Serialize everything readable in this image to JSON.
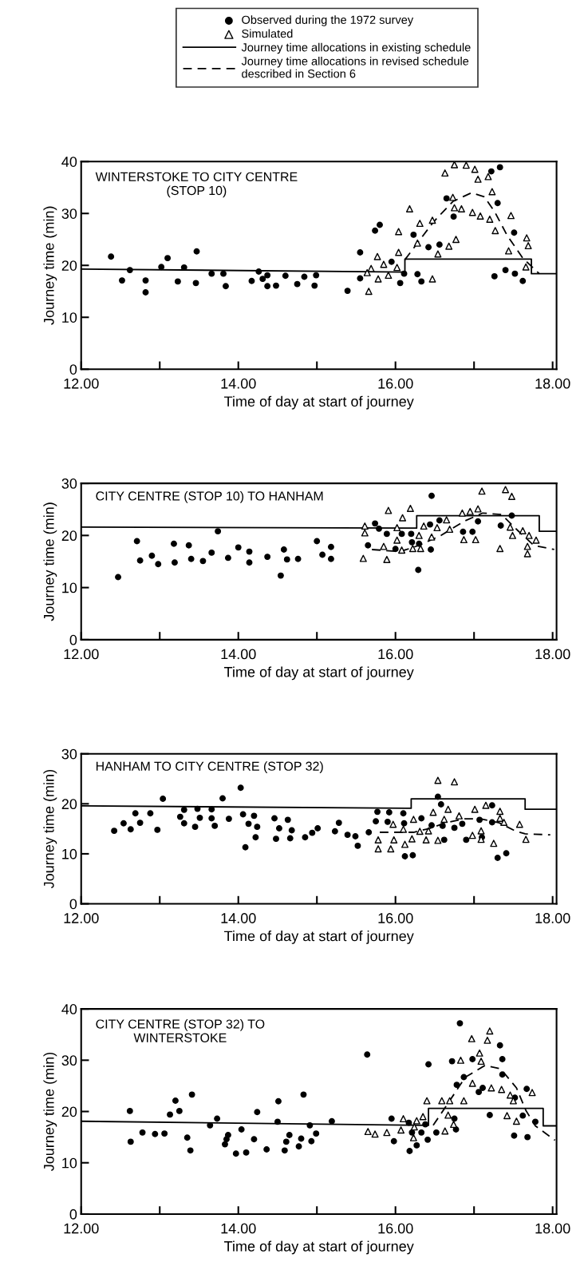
{
  "chart_data": [
    {
      "type": "scatter",
      "title": "WINTERSTOKE TO CITY CENTRE\n(STOP 10)",
      "xlabel": "Time of day at start of journey",
      "ylabel": "Journey time (min)",
      "legend": "top",
      "grid": false,
      "xlim": [
        12,
        18.05
      ],
      "xticks": [
        {
          "value": 12,
          "label": "12.00"
        },
        {
          "value": 13,
          "label": null
        },
        {
          "value": 14,
          "label": "14.00"
        },
        {
          "value": 15,
          "label": null
        },
        {
          "value": 16,
          "label": "16.00"
        },
        {
          "value": 17,
          "label": null
        },
        {
          "value": 18,
          "label": "18.00"
        }
      ],
      "ylim": [
        0,
        40
      ],
      "yticks": [
        0,
        10,
        20,
        30,
        40
      ],
      "series": [
        {
          "name": "Observed during the 1972 survey",
          "type": "scatter",
          "marker": "circle",
          "color": "#000000",
          "x": [
            12.38,
            12.52,
            12.62,
            12.82,
            12.82,
            13.02,
            13.1,
            13.23,
            13.31,
            13.46,
            13.47,
            13.66,
            13.81,
            13.84,
            14.17,
            14.26,
            14.31,
            14.37,
            14.37,
            14.48,
            14.6,
            14.75,
            14.84,
            14.97,
            14.99,
            15.39,
            15.55,
            15.55,
            15.74,
            15.8,
            15.95,
            16.06,
            16.11,
            16.23,
            16.28,
            16.33,
            16.42,
            16.56,
            16.65,
            16.74,
            17.22,
            17.33,
            17.3,
            17.26,
            17.4,
            17.51,
            17.52,
            17.62
          ],
          "values": [
            21.7,
            17.1,
            19.1,
            14.8,
            17.1,
            19.7,
            21.4,
            16.9,
            19.6,
            16.6,
            22.7,
            18.4,
            18.4,
            16.0,
            17.0,
            18.8,
            17.4,
            18.1,
            16.0,
            16.1,
            18.0,
            16.4,
            17.8,
            16.1,
            18.1,
            15.1,
            22.5,
            17.5,
            26.7,
            27.8,
            20.7,
            16.6,
            18.4,
            25.9,
            18.3,
            16.9,
            23.5,
            24.0,
            32.9,
            29.4,
            38.1,
            38.9,
            32.0,
            17.9,
            19.1,
            26.3,
            18.4,
            17.0
          ]
        },
        {
          "name": "Simulated",
          "type": "scatter",
          "marker": "triangle",
          "color": "#000000",
          "x": [
            15.66,
            15.64,
            15.69,
            15.77,
            15.78,
            15.85,
            15.91,
            16.02,
            16.04,
            16.04,
            16.18,
            16.28,
            16.31,
            16.47,
            16.47,
            16.54,
            16.63,
            16.68,
            16.75,
            16.77,
            16.73,
            16.75,
            16.84,
            16.9,
            16.98,
            17.01,
            17.05,
            17.08,
            17.18,
            17.2,
            17.23,
            17.27,
            17.44,
            17.47,
            17.66,
            17.67,
            17.69
          ],
          "values": [
            15.0,
            18.6,
            19.4,
            21.7,
            17.4,
            20.2,
            18.1,
            19.6,
            22.5,
            26.5,
            30.9,
            24.3,
            28.1,
            28.7,
            17.4,
            22.2,
            37.8,
            23.7,
            39.4,
            25.0,
            33.1,
            31.1,
            30.9,
            39.3,
            30.2,
            38.5,
            36.6,
            29.5,
            37.1,
            28.9,
            34.2,
            26.7,
            22.8,
            29.6,
            19.7,
            25.3,
            23.8
          ]
        },
        {
          "name": "Journey time allocations in existing schedule",
          "type": "line",
          "line_style": "solid",
          "marker": "none",
          "color": "#000000",
          "x": [
            12,
            16.12,
            16.12,
            17.73,
            17.73,
            18.05
          ],
          "values": [
            19.3,
            18.7,
            21.2,
            21.2,
            18.4,
            18.4
          ]
        },
        {
          "name": "Journey time allocations in revised schedule\ndescribed in Section 6",
          "type": "line",
          "line_style": "dashed",
          "marker": "none",
          "color": "#000000",
          "x": [
            16.12,
            16.48,
            16.73,
            16.97,
            17.13,
            17.26,
            17.42,
            17.62,
            17.83
          ],
          "values": [
            21.1,
            28.3,
            32.3,
            34.0,
            33.2,
            30.4,
            25.8,
            21.4,
            18.4
          ]
        }
      ]
    },
    {
      "type": "scatter",
      "title": "CITY CENTRE (STOP 10) TO HANHAM",
      "xlabel": "Time of day at start of journey",
      "ylabel": "Journey time (min)",
      "grid": false,
      "xlim": [
        12,
        18.05
      ],
      "xticks": [
        {
          "value": 12,
          "label": "12.00"
        },
        {
          "value": 13,
          "label": null
        },
        {
          "value": 14,
          "label": "14.00"
        },
        {
          "value": 15,
          "label": null
        },
        {
          "value": 16,
          "label": "16.00"
        },
        {
          "value": 17,
          "label": null
        },
        {
          "value": 18,
          "label": "18.00"
        }
      ],
      "ylim": [
        0,
        30
      ],
      "yticks": [
        0,
        10,
        20,
        30
      ],
      "series": [
        {
          "type": "scatter",
          "marker": "circle",
          "color": "#000000",
          "x": [
            12.47,
            12.71,
            12.75,
            12.9,
            12.98,
            13.18,
            13.19,
            13.37,
            13.4,
            13.55,
            13.66,
            13.74,
            13.87,
            14.0,
            14.14,
            14.14,
            14.37,
            14.54,
            14.58,
            14.62,
            14.76,
            15.0,
            15.07,
            15.18,
            15.18,
            15.65,
            15.74,
            15.79,
            15.89,
            16.0,
            16.08,
            16.2,
            16.21,
            16.3,
            16.29,
            16.45,
            16.44,
            16.46,
            16.56,
            16.86,
            16.98,
            17.05,
            17.34,
            17.48
          ],
          "values": [
            12.0,
            18.9,
            15.2,
            16.1,
            14.5,
            18.4,
            14.8,
            18.1,
            15.5,
            15.1,
            16.7,
            20.8,
            15.7,
            17.7,
            16.9,
            14.8,
            15.9,
            12.3,
            17.3,
            15.4,
            15.5,
            18.9,
            16.3,
            17.8,
            15.5,
            18.1,
            22.3,
            21.3,
            20.3,
            17.4,
            20.3,
            20.3,
            18.7,
            18.4,
            13.4,
            17.3,
            22.1,
            27.6,
            22.9,
            20.7,
            20.7,
            22.7,
            21.9,
            23.8
          ]
        },
        {
          "type": "scatter",
          "marker": "triangle",
          "color": "#000000",
          "x": [
            15.61,
            15.61,
            15.59,
            15.85,
            15.89,
            15.91,
            16.02,
            16.02,
            16.08,
            16.09,
            16.19,
            16.22,
            16.3,
            16.32,
            16.36,
            16.46,
            16.53,
            16.65,
            16.69,
            16.85,
            16.87,
            16.95,
            17.02,
            17.05,
            17.1,
            17.33,
            17.4,
            17.48,
            17.46,
            17.49,
            17.62,
            17.7,
            17.68,
            17.68,
            17.79
          ],
          "values": [
            21.8,
            20.5,
            15.6,
            17.9,
            15.4,
            24.8,
            21.5,
            19.1,
            17.2,
            23.4,
            25.2,
            17.5,
            20.0,
            17.5,
            21.8,
            19.7,
            21.5,
            23.0,
            21.2,
            24.3,
            19.2,
            24.6,
            19.2,
            25.1,
            28.5,
            17.5,
            28.8,
            27.5,
            21.6,
            20.0,
            20.9,
            20.0,
            17.9,
            16.5,
            19.1
          ]
        },
        {
          "type": "line",
          "line_style": "solid",
          "marker": "none",
          "color": "#000000",
          "x": [
            12,
            16.27,
            16.27,
            17.83,
            17.83,
            18.05
          ],
          "values": [
            21.6,
            21.4,
            23.8,
            23.8,
            20.8,
            20.8
          ]
        },
        {
          "type": "line",
          "line_style": "dashed",
          "marker": "none",
          "color": "#000000",
          "x": [
            15.7,
            16.06,
            16.3,
            16.58,
            16.87,
            17.11,
            17.35,
            17.56,
            17.76,
            18.02
          ],
          "values": [
            17.3,
            16.9,
            18.1,
            20.0,
            22.7,
            24.3,
            24.0,
            20.9,
            18.1,
            17.3
          ]
        }
      ]
    },
    {
      "type": "scatter",
      "title": "HANHAM TO CITY CENTRE (STOP 32)",
      "xlabel": "Time of day at start of journey",
      "ylabel": "Journey time (min)",
      "grid": false,
      "xlim": [
        12,
        18.05
      ],
      "xticks": [
        {
          "value": 12,
          "label": "12.00"
        },
        {
          "value": 13,
          "label": null
        },
        {
          "value": 14,
          "label": "14.00"
        },
        {
          "value": 15,
          "label": null
        },
        {
          "value": 16,
          "label": "16.00"
        },
        {
          "value": 17,
          "label": null
        },
        {
          "value": 18,
          "label": "18.00"
        }
      ],
      "ylim": [
        0,
        30
      ],
      "yticks": [
        0,
        10,
        20,
        30
      ],
      "series": [
        {
          "type": "scatter",
          "marker": "circle",
          "color": "#000000",
          "x": [
            12.42,
            12.54,
            12.63,
            12.69,
            12.75,
            12.88,
            12.97,
            13.04,
            13.26,
            13.31,
            13.31,
            13.45,
            13.48,
            13.51,
            13.66,
            13.66,
            13.7,
            13.8,
            13.88,
            14.03,
            14.06,
            14.09,
            14.13,
            14.2,
            14.22,
            14.24,
            14.46,
            14.48,
            14.52,
            14.63,
            14.66,
            14.68,
            14.85,
            14.94,
            15.01,
            15.23,
            15.28,
            15.39,
            15.49,
            15.52,
            15.66,
            15.75,
            15.77,
            15.92,
            15.9,
            16.1,
            16.11,
            16.12,
            16.22,
            16.33,
            16.46,
            16.54,
            16.58,
            16.6,
            16.62,
            16.75,
            16.85,
            16.9,
            17.07,
            17.1,
            17.23,
            17.23,
            17.3,
            17.41
          ],
          "values": [
            14.6,
            16.1,
            14.9,
            18.1,
            16.2,
            18.1,
            14.8,
            21.0,
            17.4,
            18.8,
            16.1,
            15.4,
            19.0,
            17.2,
            18.9,
            17.1,
            15.6,
            21.1,
            17.0,
            23.2,
            17.9,
            11.3,
            16.0,
            17.6,
            13.3,
            15.4,
            17.1,
            13.0,
            15.1,
            16.8,
            13.1,
            14.7,
            13.3,
            14.2,
            15.1,
            14.5,
            16.2,
            13.8,
            13.5,
            11.6,
            14.3,
            16.5,
            18.4,
            18.3,
            16.4,
            18.1,
            16.1,
            9.5,
            9.7,
            17.1,
            15.7,
            21.4,
            19.9,
            15.6,
            12.8,
            15.2,
            16.0,
            12.8,
            16.8,
            13.3,
            16.3,
            19.7,
            9.2,
            10.1
          ]
        },
        {
          "type": "scatter",
          "marker": "triangle",
          "color": "#000000",
          "x": [
            15.78,
            15.78,
            15.94,
            15.98,
            15.97,
            16.1,
            16.12,
            16.21,
            16.23,
            16.31,
            16.39,
            16.42,
            16.48,
            16.54,
            16.54,
            16.62,
            16.67,
            16.75,
            16.81,
            16.98,
            17.01,
            17.09,
            17.09,
            17.15,
            17.25,
            17.33,
            17.33,
            17.38,
            17.58,
            17.66
          ],
          "values": [
            12.8,
            11.0,
            11.0,
            12.8,
            15.9,
            14.9,
            11.9,
            13.0,
            16.9,
            14.5,
            12.8,
            14.6,
            18.3,
            12.7,
            24.7,
            16.9,
            18.9,
            24.4,
            17.6,
            13.7,
            18.9,
            14.6,
            12.9,
            19.7,
            12.1,
            18.5,
            17.1,
            16.3,
            15.9,
            12.9
          ]
        },
        {
          "type": "line",
          "line_style": "solid",
          "marker": "none",
          "color": "#000000",
          "x": [
            12,
            16.2,
            16.2,
            17.65,
            17.65,
            18.05
          ],
          "values": [
            19.6,
            19.1,
            21.0,
            21.0,
            18.9,
            18.9
          ]
        },
        {
          "type": "line",
          "line_style": "dashed",
          "marker": "none",
          "color": "#000000",
          "x": [
            15.8,
            16.23,
            16.44,
            16.64,
            16.88,
            17.08,
            17.32,
            17.52,
            17.65,
            17.97
          ],
          "values": [
            14.3,
            14.3,
            15.1,
            16.2,
            17.0,
            17.0,
            16.2,
            14.6,
            14.0,
            13.8
          ]
        }
      ]
    },
    {
      "type": "scatter",
      "title": "CITY CENTRE (STOP 32) TO\nWINTERSTOKE",
      "xlabel": "Time of day at start of journey",
      "ylabel": "Journey time (min)",
      "grid": false,
      "xlim": [
        12,
        18.05
      ],
      "xticks": [
        {
          "value": 12,
          "label": "12.00"
        },
        {
          "value": 13,
          "label": null
        },
        {
          "value": 14,
          "label": "14.00"
        },
        {
          "value": 15,
          "label": null
        },
        {
          "value": 16,
          "label": "16.00"
        },
        {
          "value": 17,
          "label": null
        },
        {
          "value": 18,
          "label": "18.00"
        }
      ],
      "ylim": [
        0,
        40
      ],
      "yticks": [
        0,
        10,
        20,
        30,
        40
      ],
      "series": [
        {
          "type": "scatter",
          "marker": "circle",
          "color": "#000000",
          "x": [
            12.62,
            12.63,
            12.78,
            12.94,
            13.06,
            13.13,
            13.2,
            13.25,
            13.35,
            13.39,
            13.41,
            13.64,
            13.73,
            13.83,
            13.85,
            13.87,
            13.97,
            14.04,
            14.1,
            14.2,
            14.24,
            14.36,
            14.5,
            14.51,
            14.59,
            14.61,
            14.65,
            14.77,
            14.8,
            14.83,
            14.91,
            14.93,
            14.99,
            15.19,
            15.64,
            15.95,
            15.98,
            16.17,
            16.18,
            16.21,
            16.27,
            16.33,
            16.38,
            16.41,
            16.42,
            16.52,
            16.72,
            16.75,
            16.77,
            16.78,
            16.82,
            16.87,
            16.98,
            17.06,
            17.11,
            17.2,
            17.33,
            17.36,
            17.36,
            17.51,
            17.52,
            17.62,
            17.67,
            17.68,
            17.78
          ],
          "values": [
            20.1,
            14.1,
            15.9,
            15.6,
            15.7,
            19.4,
            22.1,
            20.1,
            14.9,
            12.4,
            23.3,
            17.3,
            18.6,
            13.6,
            14.6,
            15.4,
            11.8,
            16.5,
            12.0,
            14.6,
            19.9,
            12.6,
            18.0,
            22.0,
            12.4,
            14.1,
            15.4,
            13.2,
            14.7,
            23.3,
            17.3,
            14.2,
            15.7,
            18.1,
            31.1,
            18.6,
            14.2,
            17.8,
            12.3,
            15.9,
            13.4,
            15.9,
            17.5,
            14.5,
            29.2,
            15.9,
            29.8,
            18.6,
            16.5,
            25.2,
            37.2,
            26.7,
            30.2,
            23.8,
            24.6,
            19.3,
            32.9,
            30.2,
            27.2,
            15.3,
            22.7,
            19.2,
            24.4,
            15.0,
            18.0
          ]
        },
        {
          "type": "scatter",
          "marker": "triangle",
          "color": "#000000",
          "x": [
            15.65,
            15.74,
            15.89,
            16.07,
            16.1,
            16.23,
            16.24,
            16.27,
            16.35,
            16.4,
            16.59,
            16.69,
            16.67,
            16.63,
            16.74,
            16.83,
            16.87,
            16.97,
            16.98,
            17.07,
            17.09,
            17.17,
            17.2,
            17.22,
            17.35,
            17.42,
            17.46,
            17.5,
            17.54,
            17.74
          ],
          "values": [
            16.1,
            15.6,
            15.9,
            16.4,
            18.6,
            14.9,
            17.0,
            18.2,
            19.0,
            22.1,
            22.1,
            22.1,
            19.3,
            16.2,
            17.5,
            30.0,
            22.1,
            34.2,
            25.5,
            31.4,
            29.8,
            33.9,
            35.7,
            24.6,
            24.3,
            19.2,
            23.2,
            22.1,
            18.1,
            23.7
          ]
        },
        {
          "type": "line",
          "line_style": "solid",
          "marker": "none",
          "color": "#000000",
          "x": [
            12,
            16.42,
            16.42,
            17.88,
            17.88,
            18.05
          ],
          "values": [
            18.1,
            17.3,
            20.6,
            20.6,
            17.2,
            17.2
          ]
        },
        {
          "type": "line",
          "line_style": "dashed",
          "marker": "none",
          "color": "#000000",
          "x": [
            16.48,
            16.69,
            16.89,
            17.14,
            17.34,
            17.54,
            17.66,
            17.78,
            18.03
          ],
          "values": [
            17.3,
            22.1,
            26.7,
            29.0,
            28.3,
            24.6,
            20.2,
            17.2,
            14.4
          ]
        }
      ]
    }
  ]
}
